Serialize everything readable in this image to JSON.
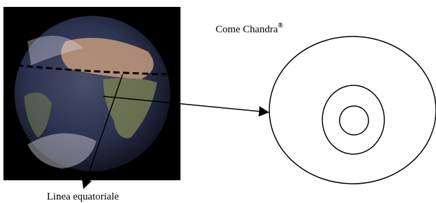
{
  "labels": {
    "title": "Come Chandra",
    "title_mark": "®",
    "caption": "Linea equatoriale"
  }
}
